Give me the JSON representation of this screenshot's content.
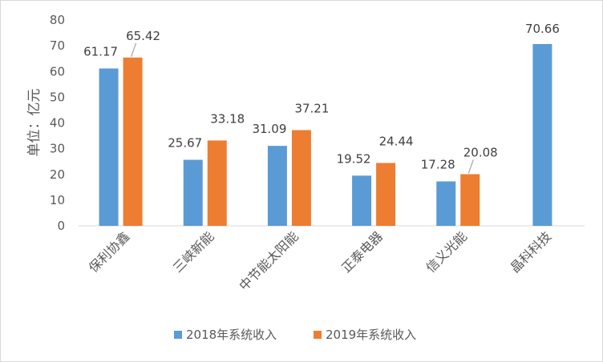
{
  "chart_data": {
    "type": "bar",
    "ylabel": "单位：亿元",
    "ylim": [
      0,
      80
    ],
    "yticks": [
      0,
      10,
      20,
      30,
      40,
      50,
      60,
      70,
      80
    ],
    "categories": [
      "保利协鑫",
      "三峡新能",
      "中节能太阳能",
      "正泰电器",
      "信义光能",
      "晶科科技"
    ],
    "series": [
      {
        "name": "2018年系统收入",
        "color": "#5b9bd5",
        "values": [
          61.17,
          25.67,
          31.09,
          19.52,
          17.28,
          70.66
        ],
        "labels": [
          "61.17",
          "25.67",
          "31.09",
          "19.52",
          "17.28",
          "70.66"
        ]
      },
      {
        "name": "2019年系统收入",
        "color": "#ed7d31",
        "values": [
          65.42,
          33.18,
          37.21,
          24.44,
          20.08,
          null
        ],
        "labels": [
          "65.42",
          "33.18",
          "37.21",
          "24.44",
          "20.08",
          ""
        ]
      }
    ],
    "legend_position": "bottom",
    "grid": false
  }
}
